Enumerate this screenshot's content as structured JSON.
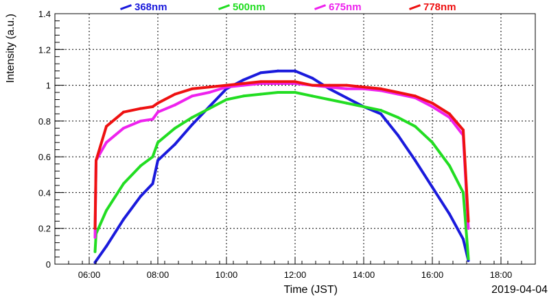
{
  "chart_data": {
    "type": "scatter",
    "title": "",
    "xlabel": "Time (JST)",
    "ylabel": "Intensity (a.u.)",
    "date_label": "2019-04-04",
    "xlim": [
      5.0,
      19.0
    ],
    "ylim": [
      0,
      1.4
    ],
    "x_ticks": [
      "06:00",
      "08:00",
      "10:00",
      "12:00",
      "14:00",
      "16:00",
      "18:00"
    ],
    "x_tick_values": [
      6,
      8,
      10,
      12,
      14,
      16,
      18
    ],
    "y_ticks": [
      "0",
      "0.2",
      "0.4",
      "0.6",
      "0.8",
      "1",
      "1.2",
      "1.4"
    ],
    "y_tick_values": [
      0,
      0.2,
      0.4,
      0.6,
      0.8,
      1.0,
      1.2,
      1.4
    ],
    "grid": true,
    "legend_position": "top",
    "series": [
      {
        "name": "368nm",
        "color": "#1a1adc",
        "points": [
          [
            6.17,
            0.01
          ],
          [
            6.5,
            0.1
          ],
          [
            7.0,
            0.25
          ],
          [
            7.5,
            0.38
          ],
          [
            7.85,
            0.45
          ],
          [
            8.0,
            0.58
          ],
          [
            8.5,
            0.67
          ],
          [
            9.0,
            0.78
          ],
          [
            9.5,
            0.88
          ],
          [
            10.0,
            0.98
          ],
          [
            10.5,
            1.03
          ],
          [
            11.0,
            1.07
          ],
          [
            11.5,
            1.08
          ],
          [
            12.0,
            1.08
          ],
          [
            12.5,
            1.04
          ],
          [
            13.0,
            0.98
          ],
          [
            13.5,
            0.93
          ],
          [
            14.0,
            0.88
          ],
          [
            14.5,
            0.84
          ],
          [
            15.0,
            0.72
          ],
          [
            15.5,
            0.58
          ],
          [
            16.0,
            0.43
          ],
          [
            16.5,
            0.28
          ],
          [
            16.9,
            0.14
          ],
          [
            17.05,
            0.02
          ]
        ]
      },
      {
        "name": "500nm",
        "color": "#22dd22",
        "points": [
          [
            6.17,
            0.07
          ],
          [
            6.2,
            0.17
          ],
          [
            6.5,
            0.3
          ],
          [
            7.0,
            0.45
          ],
          [
            7.5,
            0.55
          ],
          [
            7.85,
            0.6
          ],
          [
            8.0,
            0.68
          ],
          [
            8.5,
            0.76
          ],
          [
            9.0,
            0.82
          ],
          [
            9.5,
            0.87
          ],
          [
            10.0,
            0.92
          ],
          [
            10.5,
            0.94
          ],
          [
            11.0,
            0.95
          ],
          [
            11.5,
            0.96
          ],
          [
            12.0,
            0.96
          ],
          [
            12.5,
            0.94
          ],
          [
            13.0,
            0.92
          ],
          [
            13.5,
            0.9
          ],
          [
            14.0,
            0.88
          ],
          [
            14.5,
            0.86
          ],
          [
            15.0,
            0.82
          ],
          [
            15.5,
            0.77
          ],
          [
            16.0,
            0.68
          ],
          [
            16.5,
            0.55
          ],
          [
            16.9,
            0.4
          ],
          [
            17.05,
            0.03
          ]
        ]
      },
      {
        "name": "675nm",
        "color": "#ee22ee",
        "points": [
          [
            6.17,
            0.15
          ],
          [
            6.2,
            0.58
          ],
          [
            6.5,
            0.68
          ],
          [
            7.0,
            0.76
          ],
          [
            7.5,
            0.8
          ],
          [
            7.85,
            0.81
          ],
          [
            8.0,
            0.85
          ],
          [
            8.5,
            0.89
          ],
          [
            9.0,
            0.94
          ],
          [
            9.5,
            0.96
          ],
          [
            10.0,
            0.99
          ],
          [
            10.5,
            1.0
          ],
          [
            11.0,
            1.01
          ],
          [
            11.5,
            1.01
          ],
          [
            12.0,
            1.01
          ],
          [
            12.5,
            1.0
          ],
          [
            13.0,
            0.99
          ],
          [
            13.5,
            0.98
          ],
          [
            14.0,
            0.98
          ],
          [
            14.5,
            0.97
          ],
          [
            15.0,
            0.95
          ],
          [
            15.5,
            0.93
          ],
          [
            16.0,
            0.88
          ],
          [
            16.5,
            0.82
          ],
          [
            16.9,
            0.72
          ],
          [
            17.05,
            0.2
          ]
        ]
      },
      {
        "name": "778nm",
        "color": "#ee1111",
        "points": [
          [
            6.17,
            0.2
          ],
          [
            6.2,
            0.58
          ],
          [
            6.5,
            0.77
          ],
          [
            7.0,
            0.85
          ],
          [
            7.5,
            0.87
          ],
          [
            7.85,
            0.88
          ],
          [
            8.0,
            0.9
          ],
          [
            8.5,
            0.95
          ],
          [
            9.0,
            0.98
          ],
          [
            9.5,
            0.99
          ],
          [
            10.0,
            1.0
          ],
          [
            10.5,
            1.01
          ],
          [
            11.0,
            1.02
          ],
          [
            11.5,
            1.02
          ],
          [
            12.0,
            1.02
          ],
          [
            12.5,
            1.0
          ],
          [
            13.0,
            1.0
          ],
          [
            13.5,
            1.0
          ],
          [
            14.0,
            0.99
          ],
          [
            14.5,
            0.98
          ],
          [
            15.0,
            0.96
          ],
          [
            15.5,
            0.94
          ],
          [
            16.0,
            0.9
          ],
          [
            16.5,
            0.84
          ],
          [
            16.9,
            0.75
          ],
          [
            17.05,
            0.24
          ]
        ]
      }
    ]
  }
}
